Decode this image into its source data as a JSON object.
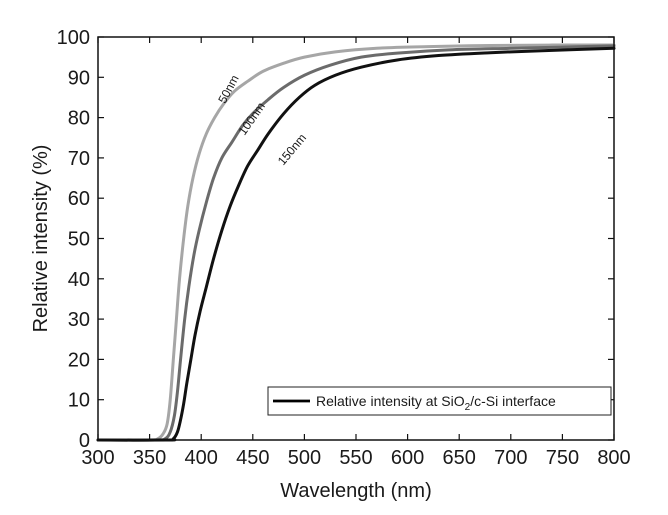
{
  "chart_data": {
    "type": "line",
    "title": "",
    "xlabel": "Wavelength (nm)",
    "ylabel": "Relative intensity (%)",
    "xlim": [
      300,
      800
    ],
    "ylim": [
      0,
      100
    ],
    "xticks": [
      300,
      350,
      400,
      450,
      500,
      550,
      600,
      650,
      700,
      750,
      800
    ],
    "yticks": [
      0,
      10,
      20,
      30,
      40,
      50,
      60,
      70,
      80,
      90,
      100
    ],
    "grid": false,
    "legend": {
      "placement": "bottom-right",
      "text_main": "Relative intensity at SiO",
      "text_sub": "2",
      "text_rest": "/c-Si interface",
      "color": "#000000"
    },
    "series": [
      {
        "name": "50nm",
        "color": "#a6a6a6",
        "x": [
          300,
          350,
          358,
          363,
          367,
          370,
          373,
          376,
          379,
          383,
          387,
          392,
          398,
          405,
          413,
          422,
          432,
          445,
          460,
          480,
          500,
          530,
          570,
          620,
          680,
          740,
          800
        ],
        "y": [
          0,
          0,
          0.3,
          1.5,
          4,
          10,
          20,
          30,
          40,
          50,
          58,
          65,
          71,
          76,
          80,
          83.5,
          86.5,
          89,
          91.5,
          93.5,
          95,
          96.3,
          97.2,
          97.6,
          97.9,
          98,
          98
        ]
      },
      {
        "name": "100nm",
        "color": "#6b6b6b",
        "x": [
          300,
          355,
          365,
          370,
          374,
          377,
          380,
          384,
          388,
          393,
          398,
          405,
          412,
          420,
          430,
          440,
          450,
          465,
          480,
          500,
          525,
          555,
          590,
          640,
          700,
          750,
          800
        ],
        "y": [
          0,
          0,
          0.3,
          2,
          6,
          12,
          20,
          30,
          38,
          46,
          52,
          59,
          65,
          70,
          74,
          78,
          81,
          84.5,
          87.5,
          90.5,
          93,
          95,
          96,
          96.8,
          97.2,
          97.5,
          97.8
        ]
      },
      {
        "name": "150nm",
        "color": "#111111",
        "x": [
          300,
          368,
          373,
          377,
          380,
          383,
          386,
          390,
          394,
          399,
          405,
          412,
          420,
          428,
          436,
          445,
          455,
          465,
          480,
          495,
          510,
          530,
          555,
          590,
          630,
          680,
          730,
          800
        ],
        "y": [
          0,
          0,
          0.3,
          2,
          5,
          9,
          14,
          20,
          26,
          32,
          38,
          45,
          52,
          58,
          63,
          68,
          72,
          76,
          81,
          85,
          88,
          90.5,
          92.5,
          94.3,
          95.4,
          96.1,
          96.6,
          97.2
        ]
      }
    ]
  }
}
